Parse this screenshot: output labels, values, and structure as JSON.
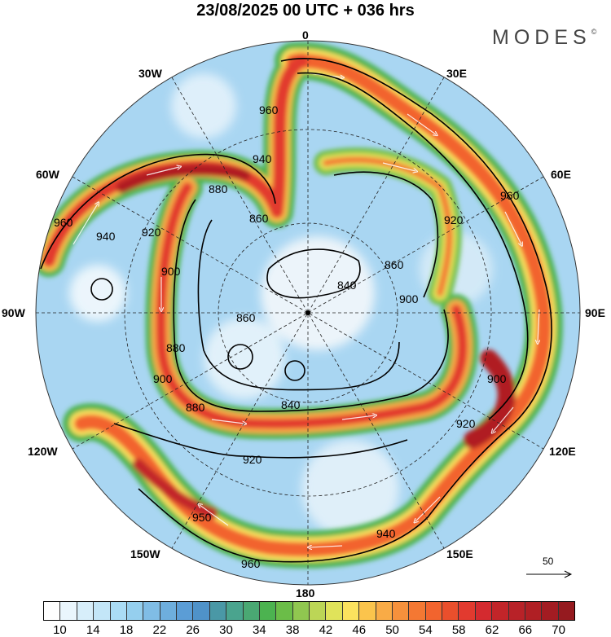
{
  "title": "23/08/2025  00 UTC  + 036 hrs",
  "logo": {
    "text": "MODES",
    "mark": "©"
  },
  "longitude_labels": {
    "n": "0",
    "ne30": "30E",
    "ne60": "60E",
    "e": "90E",
    "se120": "120E",
    "se150": "150E",
    "s": "180",
    "sw150": "150W",
    "sw120": "120W",
    "w": "90W",
    "nw60": "60W",
    "nw30": "30W"
  },
  "contour_labels": [
    "960",
    "940",
    "880",
    "860",
    "920",
    "900",
    "840",
    "860",
    "880",
    "900",
    "920",
    "940",
    "960",
    "920",
    "900",
    "860",
    "840",
    "880",
    "900",
    "920",
    "960",
    "960",
    "950",
    "940"
  ],
  "vector_reference": "50",
  "colorbar": {
    "labels": [
      "10",
      "14",
      "18",
      "22",
      "26",
      "30",
      "34",
      "38",
      "42",
      "46",
      "50",
      "54",
      "58",
      "62",
      "66",
      "70"
    ],
    "colors": [
      "#ffffff",
      "#eaf6fd",
      "#d7eefa",
      "#c3e6f8",
      "#aadcf5",
      "#95cfee",
      "#80bde6",
      "#6eaedd",
      "#5b9dd6",
      "#4f92c9",
      "#4a98a6",
      "#4aa48e",
      "#4aa873",
      "#4cb350",
      "#6bbd48",
      "#90c750",
      "#bcd656",
      "#e0e35a",
      "#fbe25e",
      "#fbc44c",
      "#f9ab46",
      "#f6913c",
      "#f47833",
      "#f2642e",
      "#ea4f2c",
      "#e23a2f",
      "#d42a2f",
      "#c22529",
      "#b82228",
      "#b01f24",
      "#a31c22",
      "#951a1f"
    ]
  }
}
